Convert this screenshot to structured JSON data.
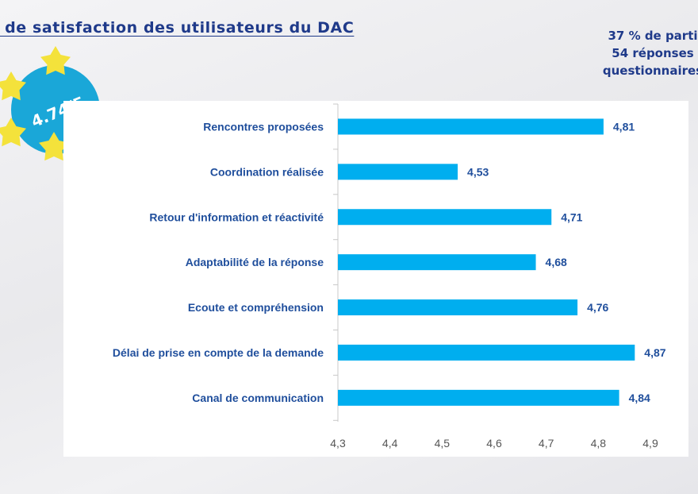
{
  "page": {
    "title": "x de satisfaction des utilisateurs du DAC",
    "info_lines": [
      "37 % de parti",
      "54 réponses",
      "questionnaires"
    ],
    "badge_text": "4.74/5",
    "colors": {
      "title": "#1f3a8a",
      "bar": "#00aeef",
      "badge": "#1aa7d8",
      "star": "#f4e23b"
    }
  },
  "chart_data": {
    "type": "bar",
    "orientation": "horizontal",
    "categories": [
      "Rencontres proposées",
      "Coordination réalisée",
      "Retour d'information et réactivité",
      "Adaptabilité de la réponse",
      "Ecoute et compréhension",
      "Délai de prise en compte de la demande",
      "Canal de communication"
    ],
    "values": [
      4.81,
      4.53,
      4.71,
      4.68,
      4.76,
      4.87,
      4.84
    ],
    "value_labels": [
      "4,81",
      "4,53",
      "4,71",
      "4,68",
      "4,76",
      "4,87",
      "4,84"
    ],
    "xlim": [
      4.3,
      4.9
    ],
    "xticks": [
      4.3,
      4.4,
      4.5,
      4.6,
      4.7,
      4.8,
      4.9
    ],
    "xtick_labels": [
      "4,3",
      "4,4",
      "4,5",
      "4,6",
      "4,7",
      "4,8",
      "4,9"
    ],
    "grid": false,
    "legend": "none",
    "title": "",
    "xlabel": "",
    "ylabel": ""
  }
}
